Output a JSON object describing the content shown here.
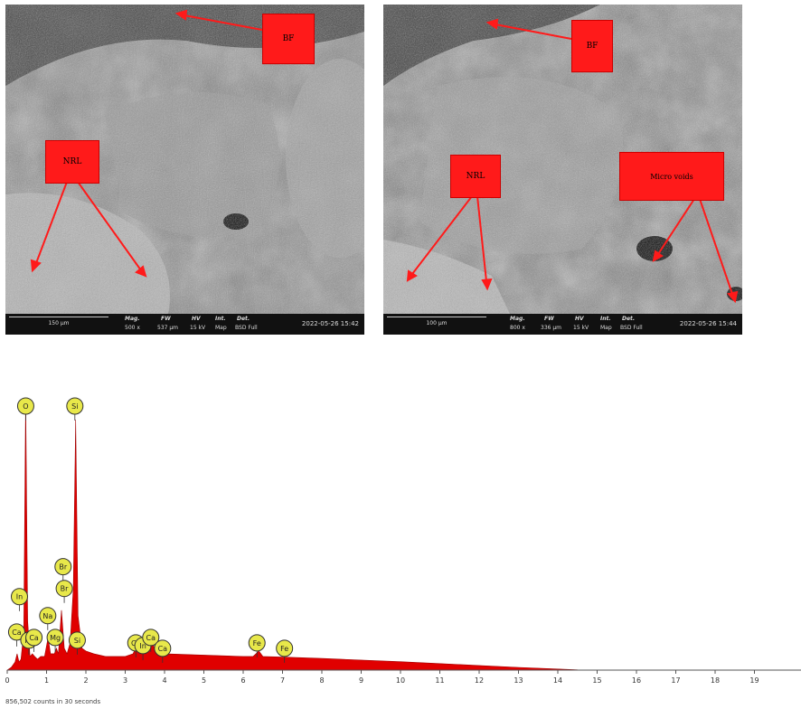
{
  "panels": [
    {
      "labels": {
        "bf": "BF",
        "nrl": "NRL"
      },
      "databar": {
        "scale": "150 µm",
        "headers": [
          "Mag.",
          "FW",
          "HV",
          "Int.",
          "Det."
        ],
        "values": [
          "500 x",
          "537 µm",
          "15 kV",
          "Map",
          "BSD Full"
        ],
        "timestamp": "2022-05-26 15:42"
      }
    },
    {
      "labels": {
        "bf": "BF",
        "nrl": "NRL",
        "micro_voids": "Micro voids"
      },
      "databar": {
        "scale": "100 µm",
        "headers": [
          "Mag.",
          "FW",
          "HV",
          "Int.",
          "Det."
        ],
        "values": [
          "800 x",
          "336 µm",
          "15 kV",
          "Map",
          "BSD Full"
        ],
        "timestamp": "2022-05-26 15:44"
      }
    }
  ],
  "chart_data": {
    "type": "area",
    "xlabel": "",
    "ylabel": "",
    "xlim": [
      0,
      20
    ],
    "x_ticks": [
      "0",
      "1",
      "2",
      "3",
      "4",
      "5",
      "6",
      "7",
      "8",
      "9",
      "10",
      "11",
      "12",
      "13",
      "14",
      "15",
      "16",
      "17",
      "18",
      "19"
    ],
    "footer": "856,502 counts in 30 seconds",
    "fill_color": "#e00000",
    "spectrum": [
      [
        0.0,
        0
      ],
      [
        0.1,
        1
      ],
      [
        0.2,
        3
      ],
      [
        0.25,
        6
      ],
      [
        0.3,
        3
      ],
      [
        0.35,
        4
      ],
      [
        0.42,
        14
      ],
      [
        0.47,
        100
      ],
      [
        0.52,
        18
      ],
      [
        0.58,
        5
      ],
      [
        0.64,
        6
      ],
      [
        0.7,
        5
      ],
      [
        0.77,
        4
      ],
      [
        0.85,
        5
      ],
      [
        0.95,
        5
      ],
      [
        1.04,
        12
      ],
      [
        1.1,
        6
      ],
      [
        1.2,
        6
      ],
      [
        1.25,
        8
      ],
      [
        1.3,
        6
      ],
      [
        1.38,
        22
      ],
      [
        1.45,
        8
      ],
      [
        1.52,
        6
      ],
      [
        1.6,
        10
      ],
      [
        1.68,
        30
      ],
      [
        1.74,
        92
      ],
      [
        1.8,
        20
      ],
      [
        1.9,
        8
      ],
      [
        2.0,
        7
      ],
      [
        2.2,
        6
      ],
      [
        2.5,
        5
      ],
      [
        3.0,
        5
      ],
      [
        3.2,
        6
      ],
      [
        3.29,
        9
      ],
      [
        3.4,
        6
      ],
      [
        3.6,
        8
      ],
      [
        3.69,
        10
      ],
      [
        3.8,
        6
      ],
      [
        4.0,
        6
      ],
      [
        5.0,
        5.5
      ],
      [
        6.0,
        5
      ],
      [
        6.25,
        5
      ],
      [
        6.4,
        7
      ],
      [
        6.5,
        5
      ],
      [
        7.0,
        4.8
      ],
      [
        8.0,
        4.3
      ],
      [
        9.0,
        3.7
      ],
      [
        10.0,
        3.1
      ],
      [
        11.0,
        2.4
      ],
      [
        12.0,
        1.7
      ],
      [
        13.0,
        1
      ],
      [
        14.0,
        0.4
      ],
      [
        14.5,
        0.1
      ],
      [
        15.0,
        0
      ],
      [
        20.0,
        0
      ]
    ],
    "peak_labels": [
      {
        "text": "O",
        "x": 0.47,
        "level": 0.97
      },
      {
        "text": "Si",
        "x": 1.72,
        "level": 0.97
      },
      {
        "text": "Br",
        "x": 1.42,
        "level": 0.38
      },
      {
        "text": "Br",
        "x": 1.45,
        "level": 0.3
      },
      {
        "text": "In",
        "x": 0.31,
        "level": 0.27
      },
      {
        "text": "Na",
        "x": 1.03,
        "level": 0.2
      },
      {
        "text": "Ca",
        "x": 0.24,
        "level": 0.14
      },
      {
        "text": "Fe",
        "x": 0.55,
        "level": 0.11
      },
      {
        "text": "Ca",
        "x": 0.68,
        "level": 0.12
      },
      {
        "text": "Mg",
        "x": 1.22,
        "level": 0.12
      },
      {
        "text": "Si",
        "x": 1.78,
        "level": 0.11
      },
      {
        "text": "Ca",
        "x": 3.27,
        "level": 0.1
      },
      {
        "text": "In",
        "x": 3.45,
        "level": 0.09
      },
      {
        "text": "Ca",
        "x": 3.65,
        "level": 0.12
      },
      {
        "text": "Ca",
        "x": 3.95,
        "level": 0.08
      },
      {
        "text": "Fe",
        "x": 6.35,
        "level": 0.1
      },
      {
        "text": "Fe",
        "x": 7.05,
        "level": 0.08
      }
    ]
  }
}
